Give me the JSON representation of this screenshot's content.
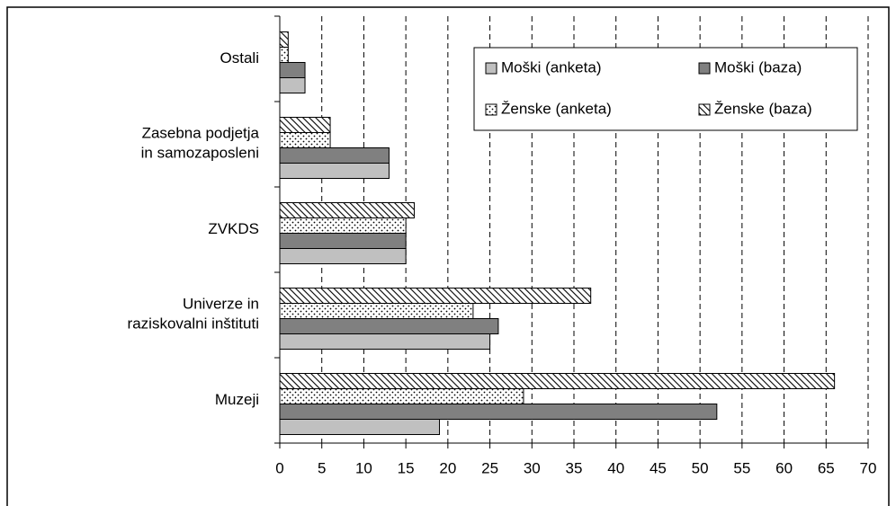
{
  "chart_data": {
    "type": "bar",
    "orientation": "horizontal",
    "categories": [
      "Ostali",
      "Zasebna podjetja\nin samozaposleni",
      "ZVKDS",
      "Univerze in\nraziskovalni inštituti",
      "Muzeji"
    ],
    "series": [
      {
        "name": "Moški (anketa)",
        "color": "#c0c0c0",
        "pattern": "solid",
        "values": [
          3,
          13,
          15,
          25,
          19
        ]
      },
      {
        "name": "Moški (baza)",
        "color": "#808080",
        "pattern": "solid",
        "values": [
          3,
          13,
          15,
          26,
          52
        ]
      },
      {
        "name": "Ženske (anketa)",
        "color": "#ffffff",
        "pattern": "dots",
        "values": [
          1,
          6,
          15,
          23,
          29
        ]
      },
      {
        "name": "Ženske (baza)",
        "color": "#ffffff",
        "pattern": "hatch",
        "values": [
          1,
          6,
          16,
          37,
          66
        ]
      }
    ],
    "xlim": [
      0,
      70
    ],
    "xticks": [
      0,
      5,
      10,
      15,
      20,
      25,
      30,
      35,
      40,
      45,
      50,
      55,
      60,
      65,
      70
    ],
    "grid": true,
    "legend": "upper right"
  }
}
